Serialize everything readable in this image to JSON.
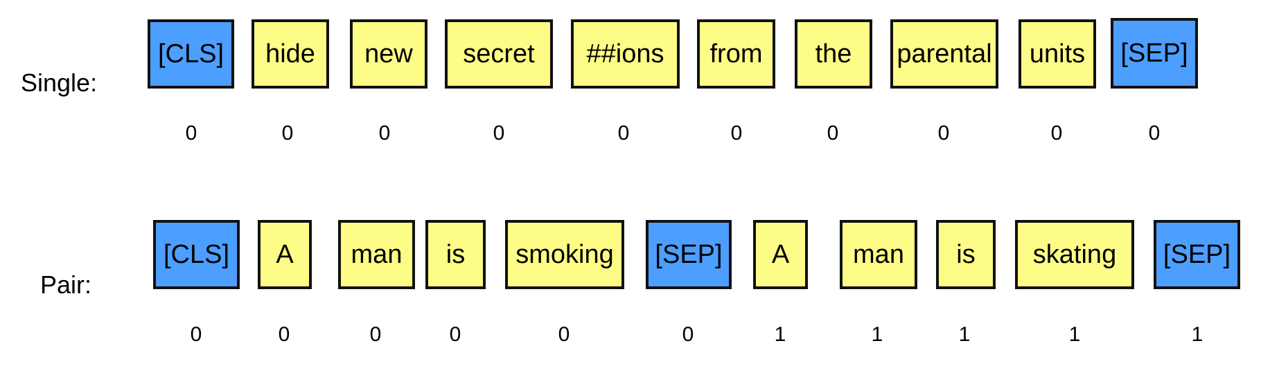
{
  "colors": {
    "special_token": "#4c9eff",
    "word_token": "#fdfc86",
    "border": "#111111"
  },
  "rows": [
    {
      "label": "Single:",
      "tokens": [
        {
          "text": "[CLS]",
          "kind": "special",
          "segment": "0"
        },
        {
          "text": "hide",
          "kind": "word",
          "segment": "0"
        },
        {
          "text": "new",
          "kind": "word",
          "segment": "0"
        },
        {
          "text": "secret",
          "kind": "word",
          "segment": "0"
        },
        {
          "text": "##ions",
          "kind": "word",
          "segment": "0"
        },
        {
          "text": "from",
          "kind": "word",
          "segment": "0"
        },
        {
          "text": "the",
          "kind": "word",
          "segment": "0"
        },
        {
          "text": "parental",
          "kind": "word",
          "segment": "0"
        },
        {
          "text": "units",
          "kind": "word",
          "segment": "0"
        },
        {
          "text": "[SEP]",
          "kind": "special",
          "segment": "0"
        }
      ]
    },
    {
      "label": "Pair:",
      "tokens": [
        {
          "text": "[CLS]",
          "kind": "special",
          "segment": "0"
        },
        {
          "text": "A",
          "kind": "word",
          "segment": "0"
        },
        {
          "text": "man",
          "kind": "word",
          "segment": "0"
        },
        {
          "text": "is",
          "kind": "word",
          "segment": "0"
        },
        {
          "text": "smoking",
          "kind": "word",
          "segment": "0"
        },
        {
          "text": "[SEP]",
          "kind": "special",
          "segment": "0"
        },
        {
          "text": "A",
          "kind": "word",
          "segment": "1"
        },
        {
          "text": "man",
          "kind": "word",
          "segment": "1"
        },
        {
          "text": "is",
          "kind": "word",
          "segment": "1"
        },
        {
          "text": "skating",
          "kind": "word",
          "segment": "1"
        },
        {
          "text": "[SEP]",
          "kind": "special",
          "segment": "1"
        }
      ]
    }
  ]
}
